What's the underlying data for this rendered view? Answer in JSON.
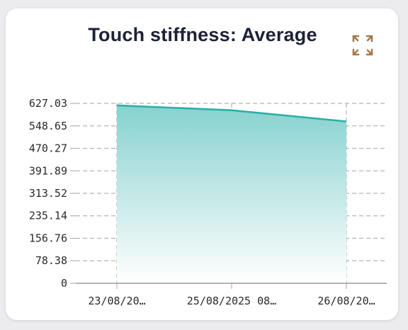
{
  "chart_data": {
    "type": "area",
    "title": "Touch stiffness: Average",
    "xlabel": "",
    "ylabel": "",
    "categories": [
      "23/08/20…",
      "25/08/2025  08…",
      "26/08/20…"
    ],
    "values": [
      620,
      603,
      564
    ],
    "yticks": [
      "0",
      "78.38",
      "156.76",
      "235.14",
      "313.52",
      "391.89",
      "470.27",
      "548.65",
      "627.03"
    ],
    "ylim": [
      0,
      627.03
    ],
    "grid": true,
    "legend": "none",
    "colors": {
      "line": "#2bb0a8",
      "fill_top": "#86d2cf",
      "fill_bottom": "#ffffff",
      "grid": "#b5b5b5",
      "icon": "#a07a4e"
    }
  },
  "toolbar": {
    "expand_icon": "expand-icon"
  }
}
